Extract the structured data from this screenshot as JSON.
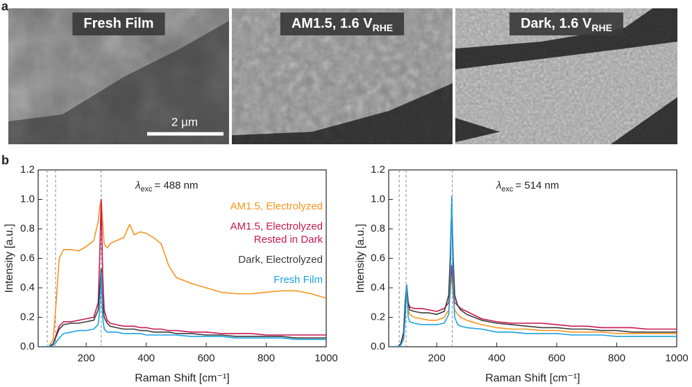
{
  "panel_labels": [
    "a",
    "b"
  ],
  "images": [
    {
      "label": "Fresh Film"
    },
    {
      "label": "AM1.5, 1.6 V",
      "subscript": "RHE"
    },
    {
      "label": "Dark, 1.6 V",
      "subscript": "RHE"
    }
  ],
  "scale_bar": "2 µm",
  "chart_data": [
    {
      "type": "line",
      "annotation": {
        "symbol": "λ",
        "subscript": "exc",
        "text": "= 488 nm"
      },
      "xlabel": "Raman Shift [cm⁻¹]",
      "ylabel": "Intensity [a.u.]",
      "xlim": [
        40,
        1000
      ],
      "ylim": [
        0,
        1.2
      ],
      "xticks": [
        200,
        400,
        600,
        800,
        1000
      ],
      "yticks": [
        {
          "value": 0,
          "label": "0.0"
        },
        0.2,
        0.4,
        0.6,
        0.8,
        {
          "value": 1,
          "label": "1.0"
        },
        1.2
      ],
      "vlines": [
        70,
        98,
        250
      ],
      "x": [
        50,
        75,
        90,
        100,
        110,
        125,
        150,
        175,
        200,
        225,
        240,
        245,
        250,
        255,
        260,
        270,
        280,
        300,
        325,
        345,
        360,
        380,
        400,
        425,
        450,
        475,
        500,
        550,
        600,
        650,
        700,
        750,
        800,
        850,
        900,
        950,
        1000
      ],
      "series": [
        {
          "name": "AM1.5, Electrolyzed",
          "color": "#f7941d",
          "values": [
            0,
            0,
            0.05,
            0.3,
            0.6,
            0.66,
            0.66,
            0.65,
            0.68,
            0.72,
            0.85,
            0.95,
            1.0,
            0.85,
            0.7,
            0.67,
            0.7,
            0.72,
            0.74,
            0.83,
            0.76,
            0.78,
            0.77,
            0.74,
            0.7,
            0.55,
            0.47,
            0.43,
            0.4,
            0.37,
            0.36,
            0.36,
            0.37,
            0.38,
            0.38,
            0.36,
            0.33
          ]
        },
        {
          "name": "AM1.5, Electrolyzed\nRested in Dark",
          "color": "#c8174f",
          "values": [
            0,
            0,
            0.02,
            0.08,
            0.14,
            0.17,
            0.17,
            0.18,
            0.19,
            0.2,
            0.3,
            0.6,
            1.0,
            0.5,
            0.25,
            0.18,
            0.16,
            0.15,
            0.14,
            0.14,
            0.14,
            0.13,
            0.13,
            0.12,
            0.12,
            0.11,
            0.11,
            0.1,
            0.1,
            0.09,
            0.09,
            0.09,
            0.08,
            0.08,
            0.08,
            0.08,
            0.08
          ]
        },
        {
          "name": "Dark, Electrolyzed",
          "color": "#3a3a3a",
          "values": [
            0,
            0,
            0.02,
            0.07,
            0.12,
            0.15,
            0.16,
            0.16,
            0.17,
            0.18,
            0.25,
            0.4,
            0.53,
            0.3,
            0.2,
            0.16,
            0.14,
            0.13,
            0.12,
            0.12,
            0.12,
            0.11,
            0.11,
            0.1,
            0.1,
            0.1,
            0.09,
            0.09,
            0.08,
            0.08,
            0.07,
            0.07,
            0.07,
            0.07,
            0.06,
            0.06,
            0.06
          ]
        },
        {
          "name": "Fresh Film",
          "color": "#1ba1e2",
          "values": [
            0,
            0,
            0.01,
            0.03,
            0.06,
            0.09,
            0.1,
            0.11,
            0.11,
            0.12,
            0.15,
            0.25,
            0.5,
            0.2,
            0.12,
            0.1,
            0.1,
            0.1,
            0.09,
            0.09,
            0.09,
            0.09,
            0.08,
            0.08,
            0.08,
            0.08,
            0.08,
            0.07,
            0.07,
            0.07,
            0.06,
            0.06,
            0.06,
            0.06,
            0.05,
            0.05,
            0.05
          ]
        }
      ]
    },
    {
      "type": "line",
      "annotation": {
        "symbol": "λ",
        "subscript": "exc",
        "text": "= 514 nm"
      },
      "xlabel": "Raman Shift [cm⁻¹]",
      "ylabel": "Intensity [a.u.]",
      "xlim": [
        40,
        1000
      ],
      "ylim": [
        0,
        1.2
      ],
      "xticks": [
        200,
        400,
        600,
        800,
        1000
      ],
      "yticks": [
        {
          "value": 0,
          "label": "0.0"
        },
        0.2,
        0.4,
        0.6,
        0.8,
        {
          "value": 1,
          "label": "1.0"
        },
        1.2
      ],
      "vlines": [
        75,
        98,
        252
      ],
      "x": [
        50,
        70,
        80,
        90,
        95,
        100,
        105,
        110,
        125,
        150,
        175,
        200,
        225,
        240,
        245,
        250,
        255,
        260,
        270,
        280,
        300,
        350,
        400,
        450,
        500,
        550,
        600,
        650,
        700,
        750,
        800,
        850,
        900,
        950,
        1000
      ],
      "series": [
        {
          "color": "#f7941d",
          "values": [
            0,
            0,
            0.02,
            0.08,
            0.25,
            0.35,
            0.25,
            0.22,
            0.2,
            0.19,
            0.18,
            0.18,
            0.2,
            0.25,
            0.35,
            0.5,
            0.35,
            0.25,
            0.22,
            0.2,
            0.18,
            0.15,
            0.13,
            0.12,
            0.12,
            0.11,
            0.11,
            0.1,
            0.1,
            0.1,
            0.09,
            0.09,
            0.09,
            0.09,
            0.09
          ]
        },
        {
          "color": "#c8174f",
          "values": [
            0,
            0,
            0.02,
            0.1,
            0.3,
            0.42,
            0.3,
            0.27,
            0.26,
            0.26,
            0.25,
            0.24,
            0.26,
            0.3,
            0.4,
            0.55,
            0.4,
            0.3,
            0.28,
            0.26,
            0.24,
            0.19,
            0.17,
            0.16,
            0.16,
            0.16,
            0.15,
            0.14,
            0.14,
            0.13,
            0.13,
            0.13,
            0.12,
            0.12,
            0.12
          ]
        },
        {
          "color": "#3a3a3a",
          "values": [
            0,
            0,
            0.02,
            0.1,
            0.3,
            0.42,
            0.3,
            0.25,
            0.24,
            0.23,
            0.23,
            0.22,
            0.24,
            0.35,
            0.6,
            0.97,
            0.6,
            0.35,
            0.28,
            0.25,
            0.22,
            0.18,
            0.16,
            0.15,
            0.14,
            0.13,
            0.13,
            0.12,
            0.12,
            0.11,
            0.11,
            0.1,
            0.1,
            0.1,
            0.1
          ]
        },
        {
          "color": "#1ba1e2",
          "values": [
            0,
            0,
            0.01,
            0.05,
            0.2,
            0.42,
            0.2,
            0.17,
            0.16,
            0.15,
            0.15,
            0.15,
            0.16,
            0.22,
            0.4,
            1.02,
            0.4,
            0.2,
            0.15,
            0.14,
            0.13,
            0.12,
            0.1,
            0.1,
            0.09,
            0.09,
            0.09,
            0.08,
            0.08,
            0.08,
            0.07,
            0.07,
            0.07,
            0.07,
            0.07
          ]
        }
      ]
    }
  ]
}
